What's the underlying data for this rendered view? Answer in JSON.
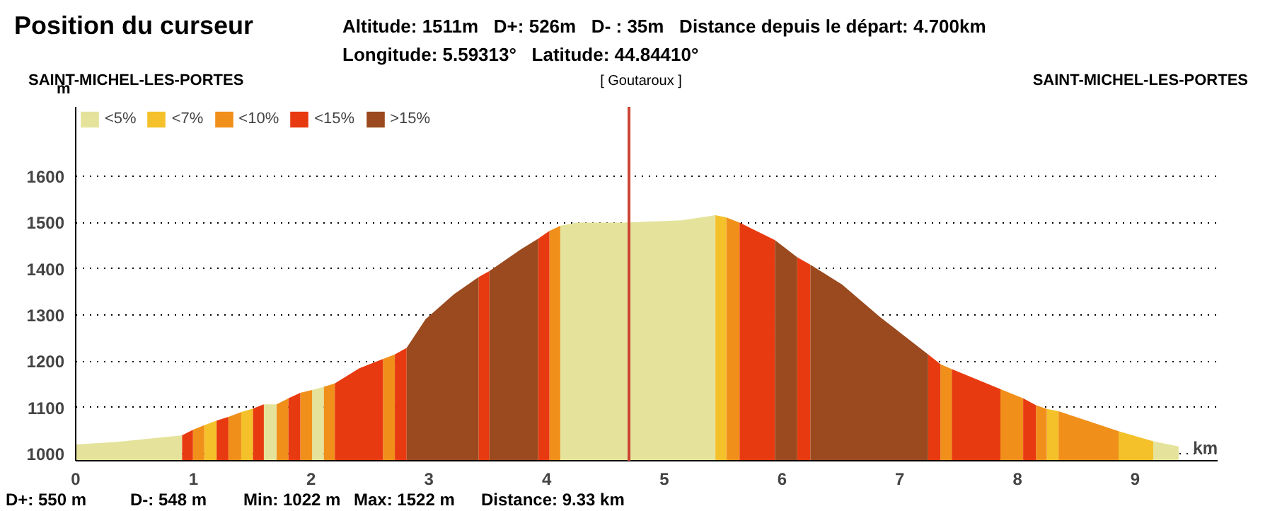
{
  "chart_data": {
    "type": "area",
    "title": "Position du curseur",
    "subtitle": "Altitude: 1511m   D+: 526m   D- : 35m   Distance depuis le départ: 4.700km",
    "xlabel": "km",
    "ylabel": "m",
    "xlim": [
      0,
      9.7
    ],
    "ylim": [
      985,
      1750
    ],
    "xticks": [
      0,
      1,
      2,
      3,
      4,
      5,
      6,
      7,
      8,
      9
    ],
    "yticks": [
      1000,
      1100,
      1200,
      1300,
      1400,
      1500,
      1600
    ],
    "grid": "y",
    "legend": "top left",
    "series": [
      {
        "name": "<5%",
        "color": "#e5e39b",
        "x": [
          0,
          0.36,
          0.52,
          0.904,
          null,
          1.598,
          1.707,
          null,
          2.008,
          2.108,
          null,
          4.116,
          4.257,
          4.66,
          5.15,
          5.434,
          null,
          9.153,
          9.369
        ],
        "values": [
          1020,
          1026,
          1030,
          1040,
          null,
          1107,
          1107,
          null,
          1138,
          1145,
          null,
          1493,
          1500,
          1500,
          1505,
          1516,
          null,
          1027,
          1016
        ]
      },
      {
        "name": "<7%",
        "color": "#f4c12a",
        "x": [
          1.092,
          1.197,
          null,
          1.406,
          1.506,
          null,
          5.434,
          5.527,
          null,
          8.249,
          8.349,
          null,
          8.859,
          9.153
        ],
        "values": [
          1062,
          1072,
          null,
          1090,
          1098,
          null,
          1516,
          1511,
          null,
          1097,
          1092,
          null,
          1049,
          1027
        ]
      },
      {
        "name": "<10%",
        "color": "#f0901a",
        "x": [
          0.996,
          1.092,
          null,
          1.297,
          1.406,
          null,
          1.707,
          1.807,
          null,
          1.908,
          2.008,
          null,
          2.108,
          2.201,
          null,
          2.61,
          2.711,
          null,
          4.024,
          4.116,
          null,
          5.527,
          5.639,
          null,
          7.345,
          7.442,
          null,
          7.855,
          8.048,
          null,
          8.157,
          8.249,
          null,
          8.349,
          8.859
        ],
        "values": [
          1052,
          1062,
          null,
          1080,
          1090,
          null,
          1107,
          1120,
          null,
          1132,
          1138,
          null,
          1145,
          1152,
          null,
          1205,
          1215,
          null,
          1482,
          1493,
          null,
          1511,
          1500,
          null,
          1194,
          1183,
          null,
          1140,
          1120,
          null,
          1105,
          1097,
          null,
          1092,
          1049
        ]
      },
      {
        "name": "<15%",
        "color": "#e83a10",
        "x": [
          0.904,
          0.996,
          null,
          1.197,
          1.297,
          null,
          1.506,
          1.598,
          null,
          1.807,
          1.908,
          null,
          2.201,
          2.41,
          2.61,
          null,
          2.711,
          2.811,
          null,
          3.422,
          3.514,
          null,
          3.928,
          4.024,
          null,
          5.639,
          5.94,
          null,
          6.129,
          6.241,
          null,
          7.241,
          7.345,
          null,
          7.442,
          7.855,
          null,
          8.048,
          8.157
        ],
        "values": [
          1040,
          1052,
          null,
          1072,
          1080,
          null,
          1098,
          1107,
          null,
          1120,
          1132,
          null,
          1152,
          1185,
          1205,
          null,
          1215,
          1229,
          null,
          1382,
          1395,
          null,
          1465,
          1482,
          null,
          1500,
          1462,
          null,
          1425,
          1409,
          null,
          1215,
          1194,
          null,
          1183,
          1140,
          null,
          1120,
          1105
        ]
      },
      {
        "name": ">15%",
        "color": "#9a4a1e",
        "x": [
          2.811,
          2.972,
          3.213,
          3.422,
          null,
          3.514,
          3.775,
          3.928,
          null,
          5.94,
          6.129,
          null,
          6.241,
          6.51,
          6.831,
          7.241
        ],
        "values": [
          1229,
          1291,
          1345,
          1382,
          null,
          1395,
          1441,
          1465,
          null,
          1462,
          1425,
          null,
          1409,
          1366,
          1296,
          1215
        ]
      }
    ],
    "ref_lines": [
      {
        "axis": "x",
        "value": 4.7,
        "color": "#cc4433"
      }
    ],
    "annotations": [
      "Longitude: 5.59313°   Latitude: 44.84410°",
      "SAINT-MICHEL-LES-PORTES",
      "[ Goutaroux ]",
      "SAINT-MICHEL-LES-PORTES",
      "D+: 550 m",
      "D-: 548 m",
      "Min: 1022 m",
      "Max: 1522 m",
      "Distance: 9.33 km"
    ]
  }
}
